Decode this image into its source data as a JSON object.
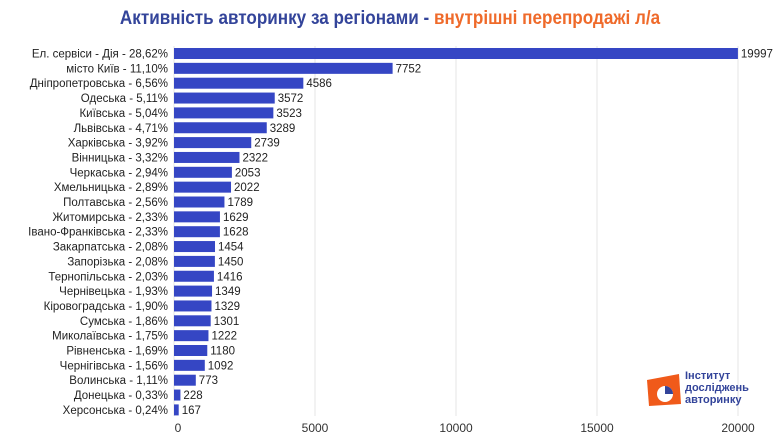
{
  "chart_data": {
    "type": "bar",
    "orientation": "horizontal",
    "title": "Активність авторинку за регіонами",
    "title_separator": " - ",
    "subtitle": "внутрішні перепродажі л/а",
    "categories": [
      "Ел. сервіси - Дія - 28,62%",
      "місто Київ - 11,10%",
      "Дніпропетровська - 6,56%",
      "Одеська - 5,11%",
      "Київська - 5,04%",
      "Львівська - 4,71%",
      "Харківська - 3,92%",
      "Вінницька - 3,32%",
      "Черкаська - 2,94%",
      "Хмельницька - 2,89%",
      "Полтавська - 2,56%",
      "Житомирська - 2,33%",
      "Івано-Франківська - 2,33%",
      "Закарпатська - 2,08%",
      "Запорізька - 2,08%",
      "Тернопільська - 2,03%",
      "Чернівецька - 1,93%",
      "Кіровоградська - 1,90%",
      "Сумська - 1,86%",
      "Миколаївська - 1,75%",
      "Рівненська - 1,69%",
      "Чернігівська - 1,56%",
      "Волинська - 1,11%",
      "Донецька - 0,33%",
      "Херсонська - 0,24%"
    ],
    "values": [
      19997,
      7752,
      4586,
      3572,
      3523,
      3289,
      2739,
      2322,
      2053,
      2022,
      1789,
      1629,
      1628,
      1454,
      1450,
      1416,
      1349,
      1329,
      1301,
      1222,
      1180,
      1092,
      773,
      228,
      167
    ],
    "xlim": [
      0,
      20000
    ],
    "xticks": [
      0,
      5000,
      10000,
      15000,
      20000
    ],
    "grid": true,
    "colors": {
      "bar": "#3546c4",
      "title": "#33449a",
      "subtitle": "#ef6a2a"
    }
  },
  "logo": {
    "lines": [
      "Інститут",
      "досліджень",
      "авторинку"
    ],
    "color": "#f05a1a"
  }
}
